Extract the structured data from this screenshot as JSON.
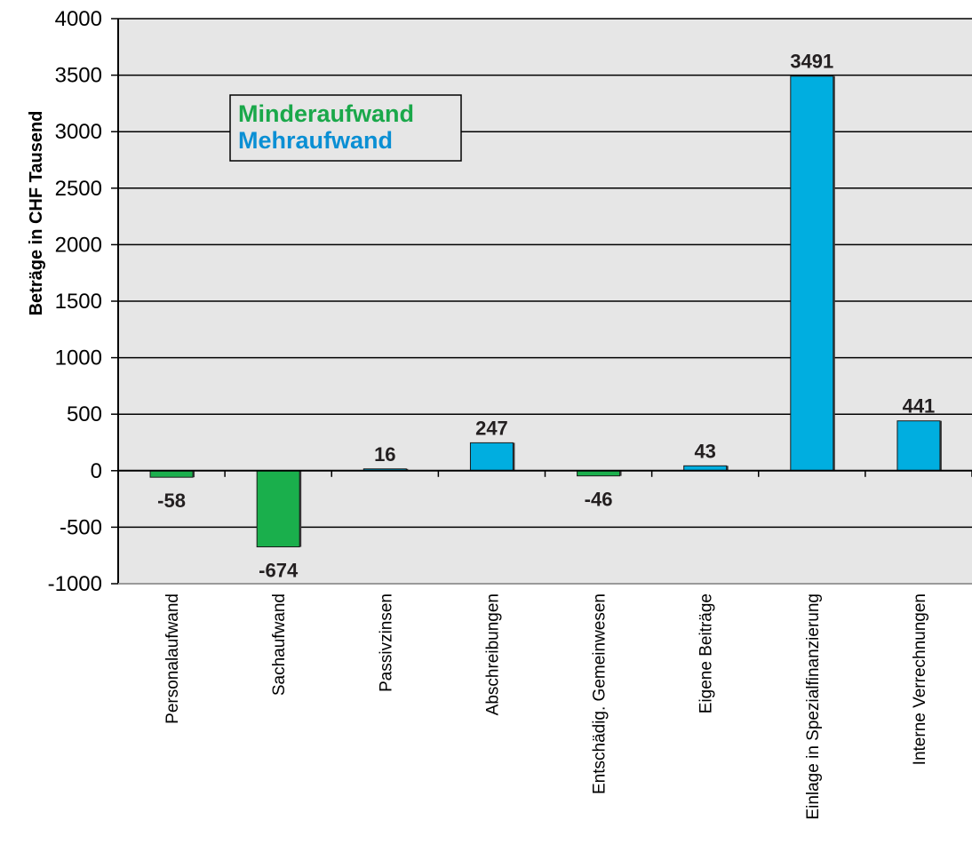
{
  "chart_data": {
    "type": "bar",
    "title": "",
    "xlabel": "",
    "ylabel": "Beträge in CHF Tausend",
    "ylim": [
      -1000,
      4000
    ],
    "yticks": [
      4000,
      3500,
      3000,
      2500,
      2000,
      1500,
      1000,
      500,
      0,
      -500,
      -1000
    ],
    "grid": true,
    "legend_placement": "top-left",
    "categories": [
      "Personalaufwand",
      "Sachaufwand",
      "Passivzinsen",
      "Abschreibungen",
      "Entschädig. Gemeinwesen",
      "Eigene Beiträge",
      "Einlage in Spezialfinanzierung",
      "Interne Verrechnungen"
    ],
    "values": [
      -58,
      -674,
      16,
      247,
      -46,
      43,
      3491,
      441
    ],
    "data_labels": [
      "-58",
      "-674",
      "16",
      "247",
      "-46",
      "43",
      "3491",
      "441"
    ],
    "legend": [
      {
        "label": "Minderaufwand",
        "color": "#1aa84a"
      },
      {
        "label": "Mehraufwand",
        "color": "#0a8fd4"
      }
    ],
    "colors": {
      "negative_bar": "#1aaf4c",
      "positive_bar": "#00aee0",
      "plot_background": "#e6e6e6",
      "gridline": "#000000"
    }
  }
}
